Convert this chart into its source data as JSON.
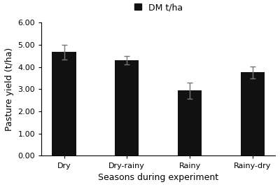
{
  "categories": [
    "Dry",
    "Dry-rainy",
    "Rainy",
    "Rainy-dry"
  ],
  "values": [
    4.67,
    4.3,
    2.93,
    3.75
  ],
  "errors": [
    0.33,
    0.2,
    0.35,
    0.27
  ],
  "bar_color": "#111111",
  "bar_width": 0.38,
  "xlabel": "Seasons during experiment",
  "ylabel": "Pasture yield (t/ha)",
  "ylim": [
    0.0,
    6.0
  ],
  "yticks": [
    0.0,
    1.0,
    2.0,
    3.0,
    4.0,
    5.0,
    6.0
  ],
  "legend_label": "DM t/ha",
  "legend_marker_color": "#111111",
  "axis_fontsize": 9,
  "tick_fontsize": 8,
  "legend_fontsize": 9,
  "background_color": "#ffffff",
  "error_cap_size": 3,
  "error_color": "#777777",
  "error_linewidth": 1.0
}
